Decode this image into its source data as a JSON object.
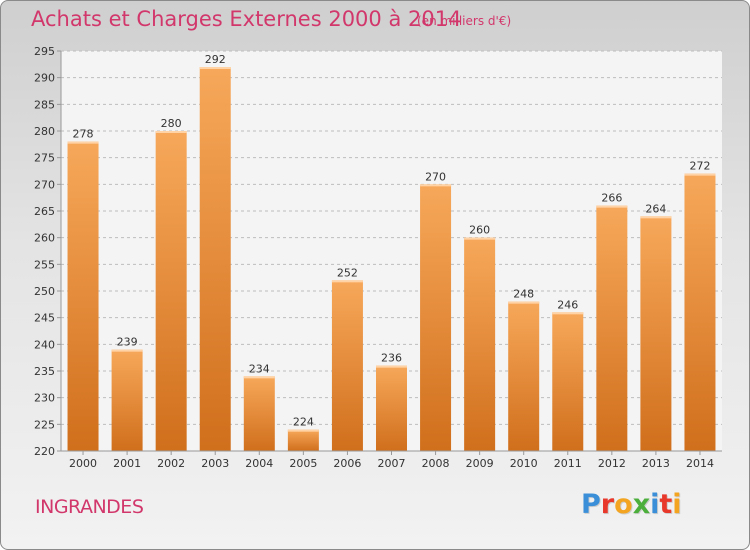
{
  "header": {
    "title": "Achats et Charges Externes 2000 à 2014",
    "subtitle": "(en milliers d'€)"
  },
  "footer": {
    "commune": "INGRANDES",
    "logo": {
      "text": "Proxiti",
      "letters": [
        {
          "char": "P",
          "color": "#3a8fd8"
        },
        {
          "char": "r",
          "color": "#e8382c"
        },
        {
          "char": "o",
          "color": "#f3a521"
        },
        {
          "char": "x",
          "color": "#4caf3c"
        },
        {
          "char": "i",
          "color": "#3a8fd8"
        },
        {
          "char": "t",
          "color": "#e8382c"
        },
        {
          "char": "i",
          "color": "#f3a521"
        }
      ]
    }
  },
  "colors": {
    "title": "#d2376b",
    "bar_light": "#f7a85a",
    "bar_dark": "#d06f1c",
    "grid": "#bdbdbd"
  },
  "chart_data": {
    "type": "bar",
    "categories": [
      "2000",
      "2001",
      "2002",
      "2003",
      "2004",
      "2005",
      "2006",
      "2007",
      "2008",
      "2009",
      "2010",
      "2011",
      "2012",
      "2013",
      "2014"
    ],
    "values": [
      278,
      239,
      280,
      292,
      234,
      224,
      252,
      236,
      270,
      260,
      248,
      246,
      266,
      264,
      272
    ],
    "ylim": [
      220,
      295
    ],
    "yticks": [
      220,
      225,
      230,
      235,
      240,
      245,
      250,
      255,
      260,
      265,
      270,
      275,
      280,
      285,
      290,
      295
    ],
    "grid": true,
    "legend": "none"
  }
}
